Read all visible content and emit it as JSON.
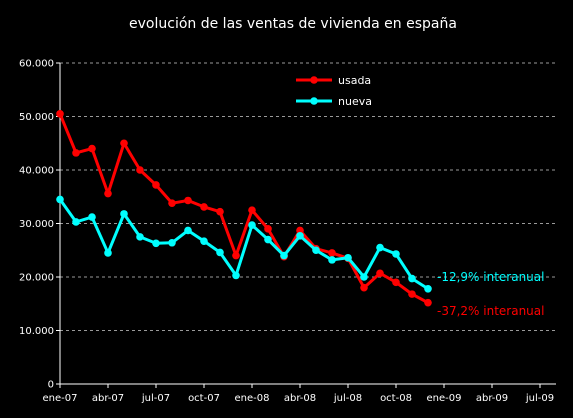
{
  "chart_data": {
    "type": "line",
    "title": "evolución de las ventas de vivienda en españa",
    "xlabel": "",
    "ylabel": "",
    "ylim": [
      0,
      60000
    ],
    "xlim": [
      "2007-01",
      "2009-08"
    ],
    "y_ticks": [
      "0",
      "10.000",
      "20.000",
      "30.000",
      "40.000",
      "50.000",
      "60.000"
    ],
    "x_ticks": [
      "ene-07",
      "abr-07",
      "jul-07",
      "oct-07",
      "ene-08",
      "abr-08",
      "jul-08",
      "oct-08",
      "ene-09",
      "abr-09",
      "jul-09"
    ],
    "grid": "horizontal dashed",
    "legend": "top-center",
    "x": [
      "2007-01",
      "2007-02",
      "2007-03",
      "2007-04",
      "2007-05",
      "2007-06",
      "2007-07",
      "2007-08",
      "2007-09",
      "2007-10",
      "2007-11",
      "2007-12",
      "2008-01",
      "2008-02",
      "2008-03",
      "2008-04",
      "2008-05",
      "2008-06",
      "2008-07",
      "2008-08",
      "2008-09",
      "2008-10",
      "2008-11",
      "2008-12"
    ],
    "series": [
      {
        "name": "usada",
        "color": "#ff0000",
        "values": [
          50500,
          43200,
          44000,
          35600,
          45000,
          40000,
          37200,
          33800,
          34300,
          33100,
          32200,
          24000,
          32500,
          29000,
          23800,
          28700,
          25300,
          24500,
          23500,
          18000,
          20700,
          19000,
          16800,
          15200
        ]
      },
      {
        "name": "nueva",
        "color": "#00ffff",
        "values": [
          34500,
          30300,
          31200,
          24500,
          31800,
          27500,
          26300,
          26400,
          28700,
          26700,
          24600,
          20300,
          29700,
          27000,
          24000,
          27700,
          25000,
          23200,
          23600,
          20000,
          25500,
          24300,
          19700,
          17800
        ]
      }
    ],
    "annotations": [
      {
        "text": "-12,9% interanual",
        "color": "#00ffff",
        "series": "nueva"
      },
      {
        "text": "-37,2% interanual",
        "color": "#ff0000",
        "series": "usada"
      }
    ]
  }
}
